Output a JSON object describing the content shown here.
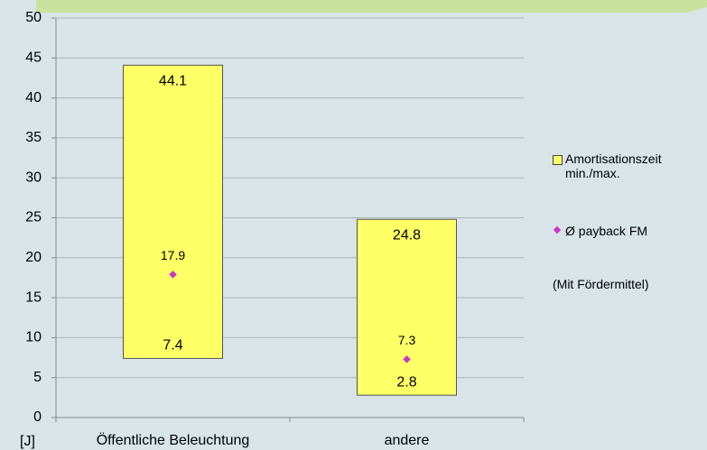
{
  "chart_data": {
    "type": "floating_bar",
    "y_label": "[J]",
    "categories": [
      "Öffentliche Beleuchtung",
      "andere"
    ],
    "series": [
      {
        "name": "Amortisationszeit min./max.",
        "color": "#ffff66",
        "min": [
          7.4,
          2.8
        ],
        "max": [
          44.1,
          24.8
        ]
      },
      {
        "name": "Ø payback FM",
        "color": "#cc33cc",
        "values": [
          17.9,
          7.3
        ]
      }
    ],
    "note": "(Mit Fördermittel)",
    "ylim": [
      0,
      50
    ],
    "yticks": [
      0,
      5,
      10,
      15,
      20,
      25,
      30,
      35,
      40,
      45,
      50
    ],
    "grid": true
  }
}
